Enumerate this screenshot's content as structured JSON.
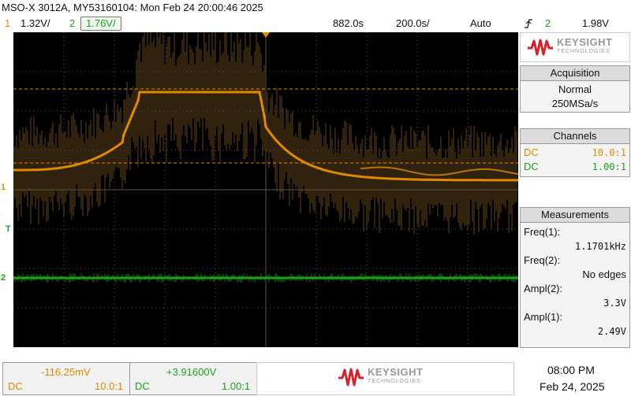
{
  "title": "MSO-X 3012A, MY53160104: Mon Feb 24 20:00:46 2025",
  "topbar": {
    "ch1_num": "1",
    "ch1_scale": "1.32V/",
    "ch2_num": "2",
    "ch2_scale": "1.76V/",
    "time_delay": "882.0s",
    "time_scale": "200.0s/",
    "trigger_mode": "Auto",
    "trigger_icon": "rising-edge-icon",
    "trigger_source": "2",
    "trigger_level": "1.98V"
  },
  "colors": {
    "ch1": "#e08a00",
    "ch2": "#1aa31a",
    "logo_red": "#d8202a",
    "screen_bg": "#000000",
    "grid": "#555555"
  },
  "markers": {
    "ch1_ground": "1",
    "ch2_ground": "2",
    "trigger_level": "T"
  },
  "brand": {
    "name": "KEYSIGHT",
    "sub": "TECHNOLOGIES"
  },
  "acquisition": {
    "header": "Acquisition",
    "mode": "Normal",
    "rate": "250MSa/s"
  },
  "channels": {
    "header": "Channels",
    "ch1_coupling": "DC",
    "ch1_probe": "10.0:1",
    "ch2_coupling": "DC",
    "ch2_probe": "1.00:1"
  },
  "measurements": {
    "header": "Measurements",
    "items": [
      {
        "label": "Freq(1):",
        "value": "1.1701kHz"
      },
      {
        "label": "Freq(2):",
        "value": "No edges"
      },
      {
        "label": "Ampl(2):",
        "value": "3.3V"
      },
      {
        "label": "Ampl(1):",
        "value": "2.49V"
      }
    ]
  },
  "bottom": {
    "ch1_offset": "-116.25mV",
    "ch1_coupling": "DC",
    "ch1_probe": "10.0:1",
    "ch2_offset": "+3.91600V",
    "ch2_coupling": "DC",
    "ch2_probe": "1.00:1",
    "time": "08:00 PM",
    "date": "Feb 24, 2025"
  }
}
